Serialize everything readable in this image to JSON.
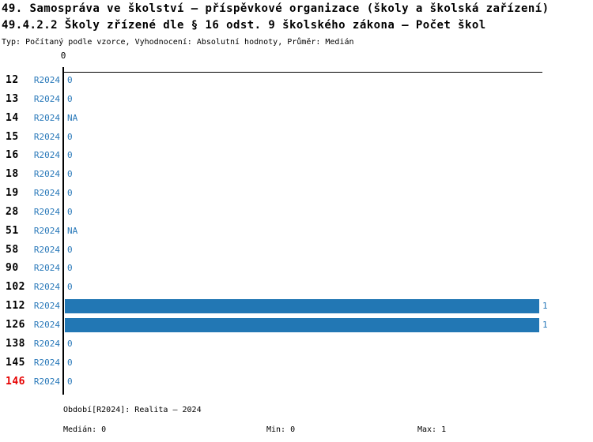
{
  "header": {
    "title_line1": "49. Samospráva ve školství – příspěvkové organizace (školy a školská zařízení)",
    "title_line2": "49.4.2.2 Školy zřízené dle § 16 odst. 9 školského zákona – Počet škol",
    "subtitle": "Typ: Počítaný podle vzorce, Vyhodnocení: Absolutní hodnoty, Průměr: Medián"
  },
  "chart_data": {
    "type": "bar",
    "orientation": "horizontal",
    "title": "49.4.2.2 Školy zřízené dle § 16 odst. 9 školského zákona – Počet škol",
    "categories": [
      "12",
      "13",
      "14",
      "15",
      "16",
      "18",
      "19",
      "28",
      "51",
      "58",
      "90",
      "102",
      "112",
      "126",
      "138",
      "145",
      "146"
    ],
    "period_label": "R2024",
    "values": [
      0,
      0,
      null,
      0,
      0,
      0,
      0,
      0,
      null,
      0,
      0,
      0,
      1,
      1,
      0,
      0,
      0
    ],
    "value_labels": [
      "0",
      "0",
      "NA",
      "0",
      "0",
      "0",
      "0",
      "0",
      "NA",
      "0",
      "0",
      "0",
      "1",
      "1",
      "0",
      "0",
      "0"
    ],
    "xlim": [
      0,
      1
    ],
    "x_tick_labels": [
      "0"
    ],
    "grid": false,
    "legend": "none",
    "highlighted_categories": [
      "146"
    ]
  },
  "footer": {
    "period_info": "Období[R2024]: Realita – 2024",
    "median": "Medián: 0",
    "min": "Min: 0",
    "max": "Max: 1"
  },
  "colors": {
    "bar_blue": "#2277b4",
    "text_blue": "#2878b9",
    "highlight_red": "#e60000",
    "axis_black": "#000000",
    "background": "#ffffff"
  }
}
